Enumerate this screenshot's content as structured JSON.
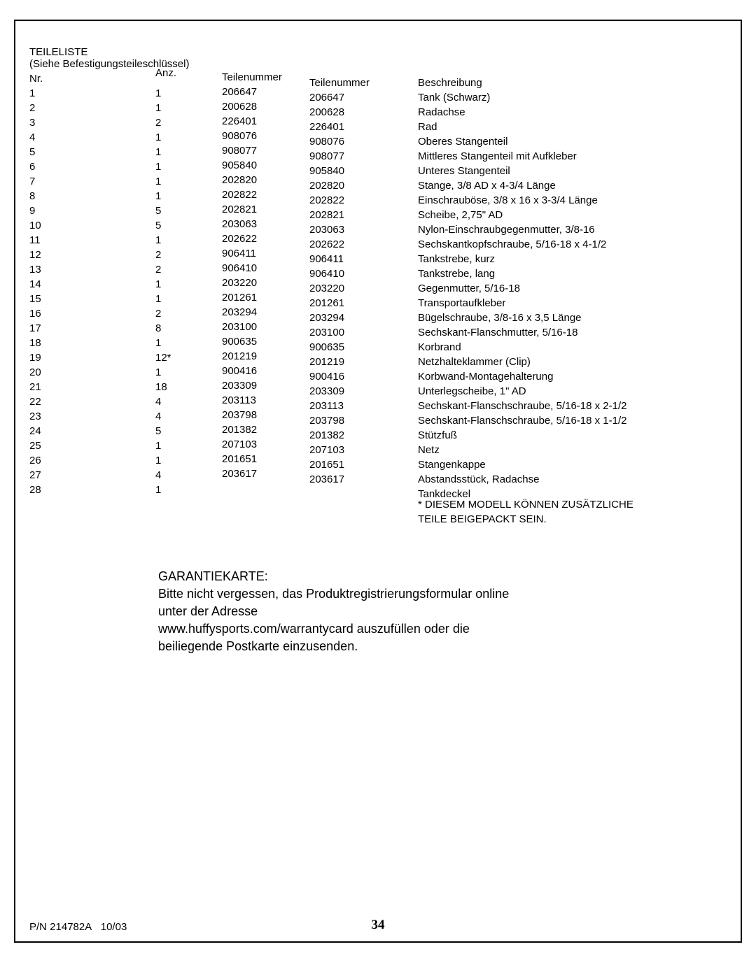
{
  "header": {
    "title": "TEILELISTE",
    "subtitle": "(Siehe Befestigungsteileschlüssel)"
  },
  "columns": {
    "nr": "Nr.",
    "anz": "Anz.",
    "pn1": "Teilenummer",
    "pn2": "Teilenummer",
    "desc": "Beschreibung"
  },
  "rows": [
    {
      "nr": "1",
      "anz": "1",
      "pn1": "206647",
      "pn2": "206647",
      "desc": "Tank (Schwarz)"
    },
    {
      "nr": "2",
      "anz": "1",
      "pn1": "200628",
      "pn2": "200628",
      "desc": "Radachse"
    },
    {
      "nr": "3",
      "anz": "2",
      "pn1": "226401",
      "pn2": "226401",
      "desc": "Rad"
    },
    {
      "nr": "4",
      "anz": "1",
      "pn1": "908076",
      "pn2": "908076",
      "desc": "Oberes Stangenteil"
    },
    {
      "nr": "5",
      "anz": "1",
      "pn1": "908077",
      "pn2": "908077",
      "desc": "Mittleres Stangenteil mit Aufkleber"
    },
    {
      "nr": "6",
      "anz": "1",
      "pn1": "905840",
      "pn2": "905840",
      "desc": "Unteres Stangenteil"
    },
    {
      "nr": "7",
      "anz": "1",
      "pn1": "202820",
      "pn2": "202820",
      "desc": "Stange, 3/8 AD x 4-3/4 Länge"
    },
    {
      "nr": "8",
      "anz": "1",
      "pn1": "202822",
      "pn2": "202822",
      "desc": "Einschrauböse, 3/8 x 16 x 3-3/4 Länge"
    },
    {
      "nr": "9",
      "anz": "5",
      "pn1": "202821",
      "pn2": "202821",
      "desc": "Scheibe, 2,75\" AD"
    },
    {
      "nr": "10",
      "anz": "5",
      "pn1": "203063",
      "pn2": "203063",
      "desc": "Nylon-Einschraubgegenmutter, 3/8-16"
    },
    {
      "nr": "11",
      "anz": "1",
      "pn1": "202622",
      "pn2": "202622",
      "desc": "Sechskantkopfschraube, 5/16-18 x 4-1/2"
    },
    {
      "nr": "12",
      "anz": "2",
      "pn1": "906411",
      "pn2": "906411",
      "desc": "Tankstrebe, kurz"
    },
    {
      "nr": "13",
      "anz": "2",
      "pn1": "906410",
      "pn2": "906410",
      "desc": "Tankstrebe, lang"
    },
    {
      "nr": "14",
      "anz": "1",
      "pn1": "203220",
      "pn2": "203220",
      "desc": "Gegenmutter, 5/16-18"
    },
    {
      "nr": "15",
      "anz": "1",
      "pn1": "201261",
      "pn2": "201261",
      "desc": "Transportaufkleber"
    },
    {
      "nr": "16",
      "anz": "2",
      "pn1": "203294",
      "pn2": "203294",
      "desc": "Bügelschraube, 3/8-16 x 3,5 Länge"
    },
    {
      "nr": "17",
      "anz": "8",
      "pn1": "203100",
      "pn2": "203100",
      "desc": "Sechskant-Flanschmutter, 5/16-18"
    },
    {
      "nr": "18",
      "anz": "1",
      "pn1": "900635",
      "pn2": "900635",
      "desc": "Korbrand"
    },
    {
      "nr": "19",
      "anz": "12*",
      "pn1": "201219",
      "pn2": "201219",
      "desc": "Netzhalteklammer (Clip)"
    },
    {
      "nr": "20",
      "anz": "1",
      "pn1": "900416",
      "pn2": "900416",
      "desc": "Korbwand-Montagehalterung"
    },
    {
      "nr": "21",
      "anz": "18",
      "pn1": "203309",
      "pn2": "203309",
      "desc": "Unterlegscheibe, 1\" AD"
    },
    {
      "nr": "22",
      "anz": "4",
      "pn1": "203113",
      "pn2": "203113",
      "desc": "Sechskant-Flanschschraube, 5/16-18 x 2-1/2"
    },
    {
      "nr": "23",
      "anz": "4",
      "pn1": "203798",
      "pn2": "203798",
      "desc": "Sechskant-Flanschschraube, 5/16-18 x 1-1/2"
    },
    {
      "nr": "24",
      "anz": "5",
      "pn1": "201382",
      "pn2": "201382",
      "desc": "Stützfuß"
    },
    {
      "nr": "25",
      "anz": "1",
      "pn1": "207103",
      "pn2": "207103",
      "desc": "Netz"
    },
    {
      "nr": "26",
      "anz": "1",
      "pn1": "201651",
      "pn2": "201651",
      "desc": "Stangenkappe"
    },
    {
      "nr": "27",
      "anz": "4",
      "pn1": "203617",
      "pn2": "203617",
      "desc": "Abstandsstück, Radachse"
    },
    {
      "nr": "28",
      "anz": "1",
      "pn1": "",
      "pn2": "",
      "desc": "Tankdeckel"
    }
  ],
  "footnote": {
    "line1": "* DIESEM MODELL KÖNNEN ZUSÄTZLICHE",
    "line2": "TEILE BEIGEPACKT SEIN."
  },
  "warranty": {
    "heading": "GARANTIEKARTE:",
    "line1": "Bitte nicht vergessen, das Produktregistrierungsformular online",
    "line2": "unter der Adresse",
    "line3": "www.huffysports.com/warrantycard auszufüllen oder die",
    "line4": "beiliegende Postkarte einzusenden."
  },
  "footer": {
    "pn": "P/N 214782A",
    "date": "10/03",
    "page": "34"
  }
}
